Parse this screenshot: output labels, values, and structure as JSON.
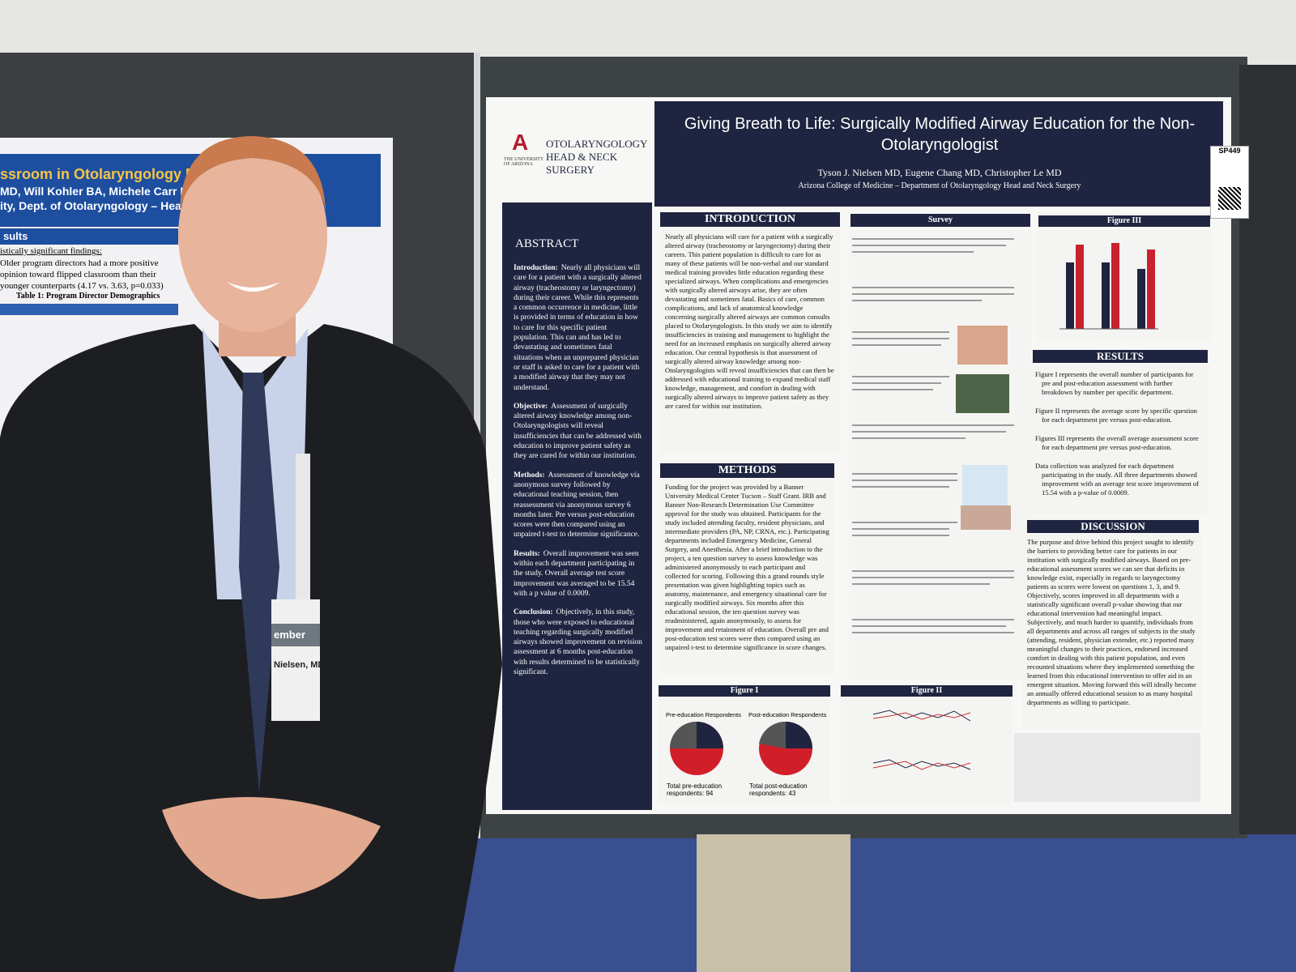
{
  "left_poster": {
    "title_fragment": "ssroom in Otolaryngology R",
    "authors_fragment": "MD, Will Kohler BA, Michele Carr MD",
    "affiliation_fragment": "ity, Dept. of Otolaryngology – Head",
    "section": "sults",
    "findings_heading": "istically significant findings:",
    "finding": "Older program directors had a more positive opinion toward flipped classroom than their younger counterparts (4.17 vs. 3.63, p=0.033)",
    "table_title": "Table 1: Program Director Demographics"
  },
  "badge": {
    "role": "ember",
    "name": "Nielsen, MD"
  },
  "poster": {
    "logo": {
      "university": "THE UNIVERSITY OF ARIZONA",
      "department": "OTOLARYNGOLOGY HEAD & NECK SURGERY"
    },
    "title": "Giving Breath to Life: Surgically Modified Airway Education for the Non-Otolaryngologist",
    "authors": "Tyson J. Nielsen MD, Eugene Chang MD, Christopher Le MD",
    "affiliation": "Arizona College of Medicine – Department of Otolaryngology Head and Neck Surgery",
    "poster_id": "SP449",
    "abstract": {
      "heading": "ABSTRACT",
      "paragraphs": [
        {
          "label": "Introduction:",
          "text": "Nearly all physicians will care for a patient with a surgically altered airway (tracheostomy or laryngectomy) during their career. While this represents a common occurrence in medicine, little is provided in terms of education in how to care for this specific patient population. This can and has led to devastating and sometimes fatal situations when an unprepared physician or staff is asked to care for a patient with a modified airway that they may not understand."
        },
        {
          "label": "Objective:",
          "text": "Assessment of surgically altered airway knowledge among non-Otolaryngologists will reveal insufficiencies that can be addressed with education to improve patient safety as they are cared for within our institution."
        },
        {
          "label": "Methods:",
          "text": "Assessment of knowledge via anonymous survey followed by educational teaching session, then reassessment via anonymous survey 6 months later. Pre versus post-education scores were then compared using an unpaired t-test to determine significance."
        },
        {
          "label": "Results:",
          "text": "Overall improvement was seen within each department participating in the study. Overall average test score improvement was averaged to be 15.54 with a p value of 0.0009."
        },
        {
          "label": "Conclusion:",
          "text": "Objectively, in this study, those who were exposed to educational teaching regarding surgically modified airways showed improvement on revision assessment at 6 months post-education with results determined to be statistically significant."
        }
      ]
    },
    "introduction": {
      "heading": "INTRODUCTION",
      "text": "Nearly all physicians will care for a patient with a surgically altered airway (tracheostomy or laryngectomy) during their careers. This patient population is difficult to care for as many of these patients will be non-verbal and our standard medical training provides little education regarding these specialized airways. When complications and emergencies with surgically altered airways arise, they are often devastating and sometimes fatal. Basics of care, common complications, and lack of anatomical knowledge concerning surgically altered airways are common consults placed to Otolaryngologists. In this study we aim to identify insufficiencies in training and management to highlight the need for an increased emphasis on surgically altered airway education. Our central hypothesis is that assessment of surgically altered airway knowledge among non-Otolaryngologists will reveal insufficiencies that can then be addressed with educational training to expand medical staff knowledge, management, and comfort in dealing with surgically altered airways to improve patient safety as they are cared for within our institution."
    },
    "methods": {
      "heading": "METHODS",
      "text": "Funding for the project was provided by a Banner University Medical Center Tucson – Staff Grant. IRB and Banner Non-Research Determination Use Committee approval for the study was obtained. Participants for the study included attending faculty, resident physicians, and intermediate providers (PA, NP, CRNA, etc.). Participating departments included Emergency Medicine, General Surgery, and Anesthesia. After a brief introduction to the project, a ten question survey to assess knowledge was administered anonymously to each participant and collected for scoring. Following this a grand rounds style presentation was given highlighting topics such as anatomy, maintenance, and emergency situational care for surgically modified airways. Six months after this educational session, the ten question survey was readministered, again anonymously, to assess for improvement and retainment of education. Overall pre and post-education test scores were then compared using an unpaired t-test to determine significance in score changes."
    },
    "survey": {
      "heading": "Survey"
    },
    "figure_1": {
      "heading": "Figure I",
      "pre_label": "Pre-education Respondents",
      "post_label": "Post-education Respondents",
      "pre_total": "Total pre-education respondents: 94",
      "post_total": "Total post-education respondents: 43"
    },
    "figure_2": {
      "heading": "Figure II"
    },
    "figure_3": {
      "heading": "Figure III"
    },
    "results": {
      "heading": "RESULTS",
      "bullets": [
        "Figure I represents the overall number of participants for pre and post-education assessment with further breakdown by number per specific department.",
        "Figure II represents the average score by specific question for each department pre versus post-education.",
        "Figures III represents the overall average assessment score for each department pre versus post-education.",
        "Data collection was analyzed for each department participating in the study. All three departments showed improvement with an average test score improvement of 15.54 with a p-value of 0.0009."
      ]
    },
    "discussion": {
      "heading": "DISCUSSION",
      "text": "The purpose and drive behind this project sought to identify the barriers to providing better care for patients in our institution with surgically modified airways. Based on pre-educational assessment scores we can see that deficits in knowledge exist, especially in regards to laryngectomy patients as scores were lowest on questions 1, 3, and 9. Objectively, scores improved in all departments with a statistically significant overall p-value showing that our educational intervention had meaningful impact. Subjectively, and much harder to quantify, individuals from all departments and across all ranges of subjects in the study (attending, resident, physician extender, etc.) reported many meaningful changes to their practices, endorsed increased comfort in dealing with this patient population, and even recounted situations where they implemented something the learned from this educational intervention to offer aid in an emergent situation. Moving forward this will ideally become an annually offered educational session to as many hospital departments as willing to participate."
    }
  }
}
